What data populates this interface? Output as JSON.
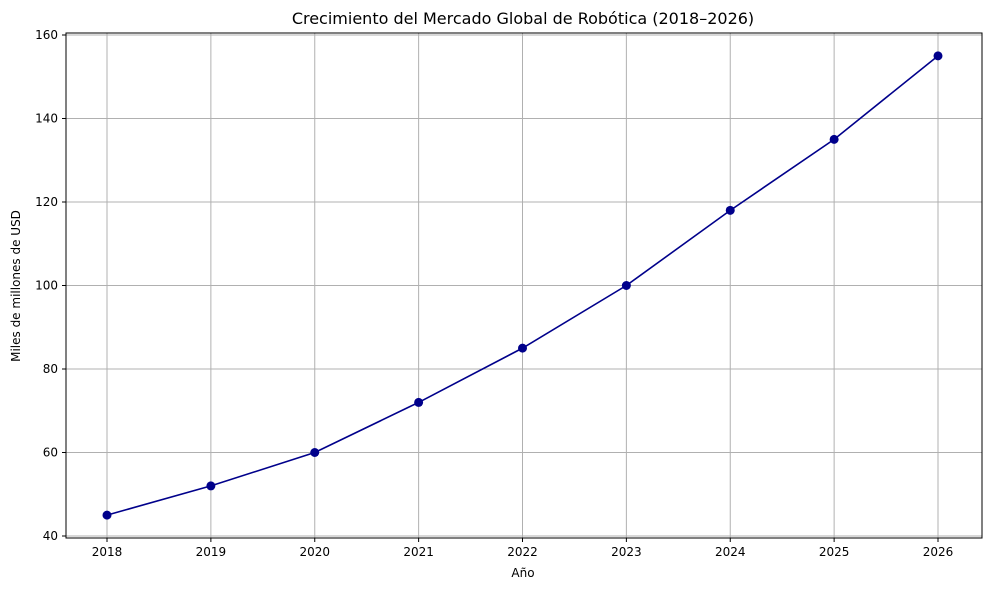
{
  "chart_data": {
    "type": "line",
    "title": "Crecimiento del Mercado Global de Robótica (2018–2026)",
    "xlabel": "Año",
    "ylabel": "Miles de millones de USD",
    "x": [
      "2018",
      "2019",
      "2020",
      "2021",
      "2022",
      "2023",
      "2024",
      "2025",
      "2026"
    ],
    "series": [
      {
        "values": [
          45,
          52,
          60,
          72,
          85,
          100,
          118,
          135,
          155
        ]
      }
    ],
    "ylim": [
      40,
      160
    ],
    "yticks": [
      "40",
      "60",
      "80",
      "100",
      "120",
      "140",
      "160"
    ],
    "grid": true,
    "line_color": "#00008b"
  }
}
